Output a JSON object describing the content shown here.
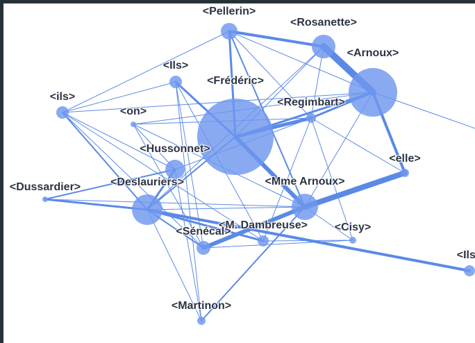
{
  "nodes": [
    {
      "label": "<Pellerin>"
    },
    {
      "label": "<Rosanette>"
    },
    {
      "label": "<Arnoux>"
    },
    {
      "label": "<Ils>"
    },
    {
      "label": "<Frédéric>"
    },
    {
      "label": "<ils>"
    },
    {
      "label": "<on>"
    },
    {
      "label": "<Regimbart>"
    },
    {
      "label": "<Hussonnet>"
    },
    {
      "label": "<elle>"
    },
    {
      "label": "<Dussardier>"
    },
    {
      "label": "<Deslauriers>"
    },
    {
      "label": "<Mme Arnoux>"
    },
    {
      "label": "<M. Dambreuse>"
    },
    {
      "label": "<Sénécal>"
    },
    {
      "label": "<Cisy>"
    },
    {
      "label": "<Ils>"
    },
    {
      "label": "<Martinon>"
    }
  ]
}
